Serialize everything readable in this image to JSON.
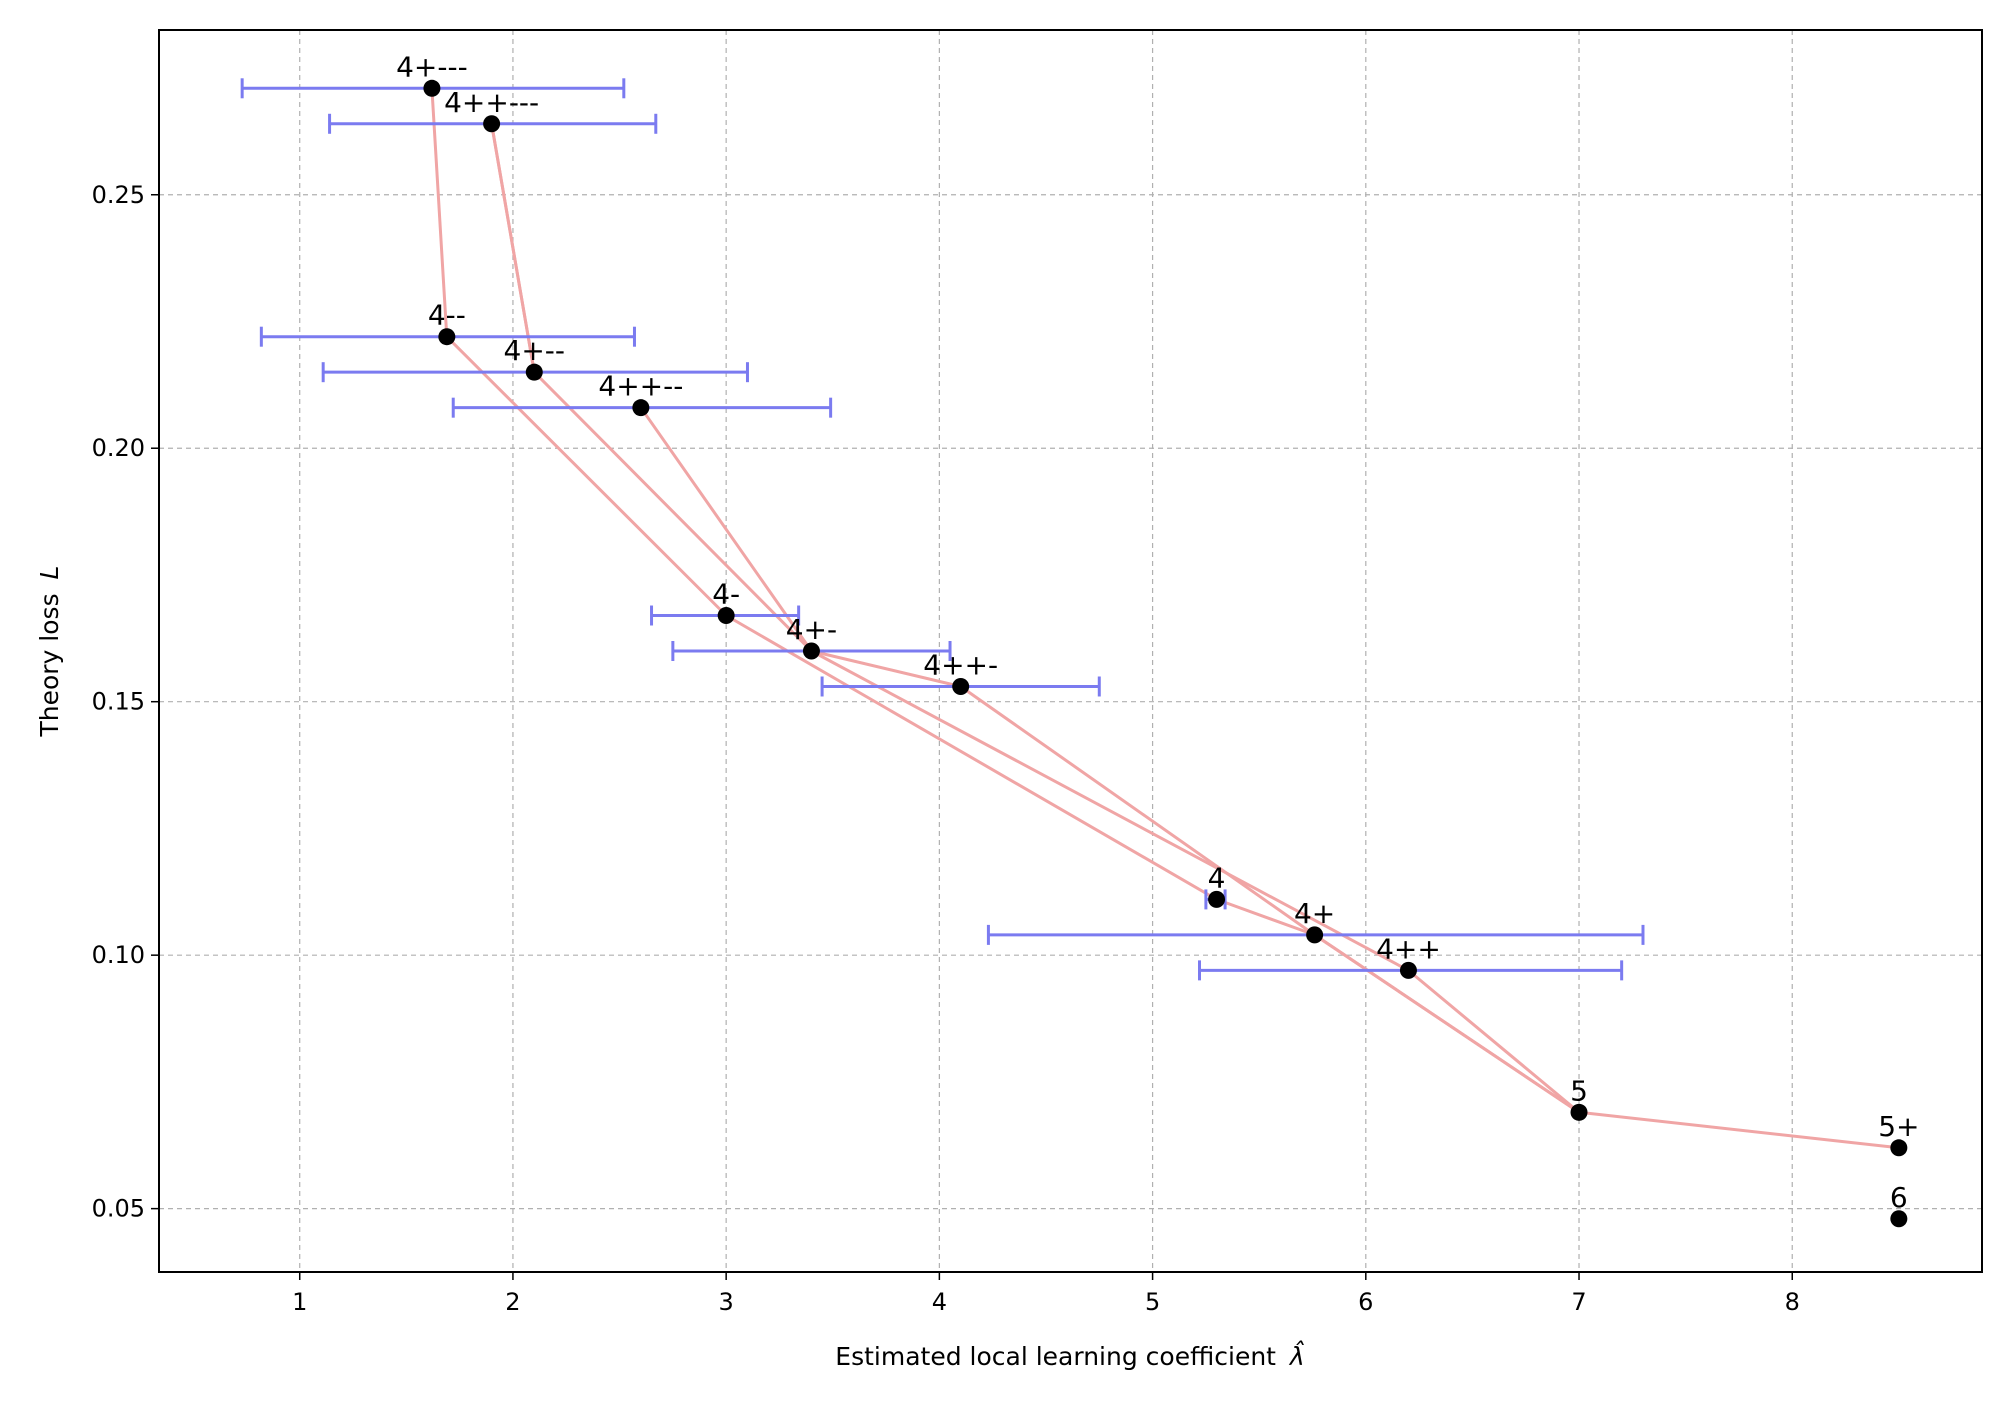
{
  "chart_data": {
    "type": "scatter",
    "title": "",
    "xlabel": "Estimated local learning coefficient",
    "xlabel_symbol": "λ̂",
    "ylabel": "Theory loss",
    "ylabel_symbol": "L",
    "xlim": [
      0.34,
      8.89
    ],
    "ylim": [
      0.0375,
      0.2825
    ],
    "xticks": [
      1,
      2,
      3,
      4,
      5,
      6,
      7,
      8
    ],
    "yticks": [
      0.05,
      0.1,
      0.15,
      0.2,
      0.25
    ],
    "ytick_labels": [
      "0.05",
      "0.10",
      "0.15",
      "0.20",
      "0.25"
    ],
    "grid": true,
    "points": [
      {
        "label": "4+---",
        "x": 1.62,
        "y": 0.271,
        "xerr_low": 0.73,
        "xerr_high": 2.52
      },
      {
        "label": "4++---",
        "x": 1.9,
        "y": 0.264,
        "xerr_low": 1.14,
        "xerr_high": 2.67
      },
      {
        "label": "4--",
        "x": 1.69,
        "y": 0.222,
        "xerr_low": 0.82,
        "xerr_high": 2.57
      },
      {
        "label": "4+--",
        "x": 2.1,
        "y": 0.215,
        "xerr_low": 1.11,
        "xerr_high": 3.1
      },
      {
        "label": "4++--",
        "x": 2.6,
        "y": 0.208,
        "xerr_low": 1.72,
        "xerr_high": 3.49
      },
      {
        "label": "4-",
        "x": 3.0,
        "y": 0.167,
        "xerr_low": 2.65,
        "xerr_high": 3.34
      },
      {
        "label": "4+-",
        "x": 3.4,
        "y": 0.16,
        "xerr_low": 2.75,
        "xerr_high": 4.05
      },
      {
        "label": "4++-",
        "x": 4.1,
        "y": 0.153,
        "xerr_low": 3.45,
        "xerr_high": 4.75
      },
      {
        "label": "4",
        "x": 5.3,
        "y": 0.111,
        "xerr_low": 5.25,
        "xerr_high": 5.34
      },
      {
        "label": "4+",
        "x": 5.76,
        "y": 0.104,
        "xerr_low": 4.23,
        "xerr_high": 7.3
      },
      {
        "label": "4++",
        "x": 6.2,
        "y": 0.097,
        "xerr_low": 5.22,
        "xerr_high": 7.2
      },
      {
        "label": "5",
        "x": 7.0,
        "y": 0.069,
        "xerr_low": null,
        "xerr_high": null
      },
      {
        "label": "5+",
        "x": 8.5,
        "y": 0.062,
        "xerr_low": null,
        "xerr_high": null
      },
      {
        "label": "6",
        "x": 8.5,
        "y": 0.048,
        "xerr_low": null,
        "xerr_high": null
      }
    ],
    "lines": [
      {
        "name": "chain-plus",
        "points": [
          "4+---",
          "4--",
          "4-",
          "4",
          "4+",
          "5",
          "5+"
        ]
      },
      {
        "name": "chain-plusplus",
        "points": [
          "4++---",
          "4+--",
          "4+-",
          "4++",
          "5"
        ]
      },
      {
        "name": "chain-plusplus-b",
        "points": [
          "4++---",
          "4+--"
        ]
      },
      {
        "name": "chain-mid",
        "points": [
          "4++--",
          "4+-",
          "4++-",
          "4+",
          "5"
        ]
      }
    ],
    "colors": {
      "marker": "#000000",
      "errorbar": "#7b7bf0",
      "trend": "#f0a5a5",
      "grid": "#b0b0b0"
    }
  }
}
